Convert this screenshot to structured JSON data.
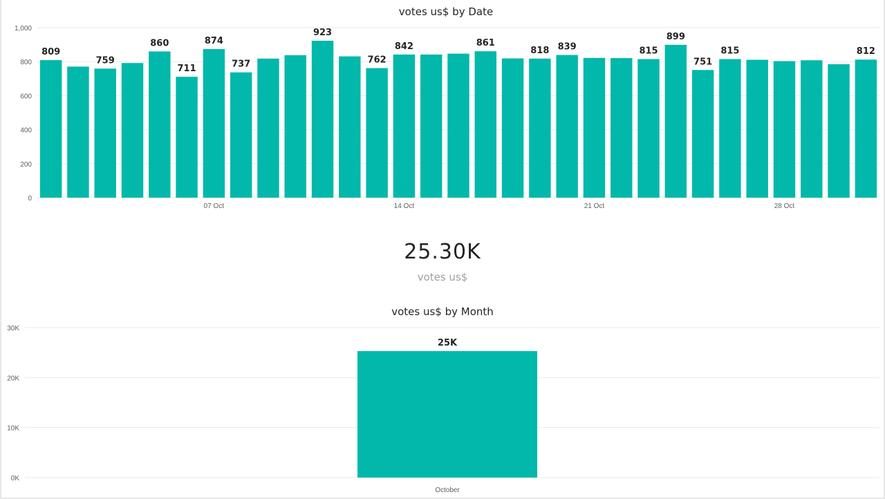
{
  "colors": {
    "bar": "#01b8aa",
    "grid": "#eaeaea",
    "text": "#252423",
    "axis_text": "#605e5c",
    "kpi_label": "#a19f9d"
  },
  "kpi": {
    "value": "25.30K",
    "label": "votes us$"
  },
  "chart_data": [
    {
      "type": "bar",
      "title": "votes us$ by Date",
      "xlabel": "",
      "ylabel": "",
      "ylim": [
        0,
        1000
      ],
      "yticks": [
        0,
        200,
        400,
        600,
        800,
        1000
      ],
      "ytick_labels": [
        "0",
        "200",
        "400",
        "600",
        "800",
        "1,000"
      ],
      "grid": true,
      "categories": [
        "2019-10-01",
        "2019-10-02",
        "2019-10-03",
        "2019-10-04",
        "2019-10-05",
        "2019-10-06",
        "2019-10-07",
        "2019-10-08",
        "2019-10-09",
        "2019-10-10",
        "2019-10-11",
        "2019-10-12",
        "2019-10-13",
        "2019-10-14",
        "2019-10-15",
        "2019-10-16",
        "2019-10-17",
        "2019-10-18",
        "2019-10-19",
        "2019-10-20",
        "2019-10-21",
        "2019-10-22",
        "2019-10-23",
        "2019-10-24",
        "2019-10-25",
        "2019-10-26",
        "2019-10-27",
        "2019-10-28",
        "2019-10-29",
        "2019-10-30",
        "2019-10-31"
      ],
      "values": [
        809,
        771,
        759,
        792,
        860,
        711,
        874,
        737,
        818,
        838,
        923,
        831,
        762,
        842,
        842,
        847,
        861,
        819,
        818,
        839,
        822,
        821,
        815,
        899,
        751,
        815,
        811,
        803,
        808,
        785,
        812
      ],
      "labeled_values": [
        809,
        null,
        759,
        null,
        860,
        711,
        874,
        737,
        null,
        null,
        923,
        null,
        762,
        842,
        null,
        null,
        861,
        null,
        818,
        839,
        null,
        null,
        815,
        899,
        751,
        815,
        null,
        null,
        null,
        null,
        812
      ],
      "x_tick_labels": [
        {
          "index": 6,
          "label": "07 Oct"
        },
        {
          "index": 13,
          "label": "14 Oct"
        },
        {
          "index": 20,
          "label": "21 Oct"
        },
        {
          "index": 27,
          "label": "28 Oct"
        }
      ]
    },
    {
      "type": "bar",
      "title": "votes us$ by Month",
      "xlabel": "",
      "ylabel": "",
      "ylim": [
        0,
        30000
      ],
      "yticks": [
        0,
        10000,
        20000,
        30000
      ],
      "ytick_labels": [
        "0K",
        "10K",
        "20K",
        "30K"
      ],
      "grid": true,
      "categories": [
        "October"
      ],
      "values": [
        25300
      ],
      "data_labels": [
        "25K"
      ]
    }
  ]
}
